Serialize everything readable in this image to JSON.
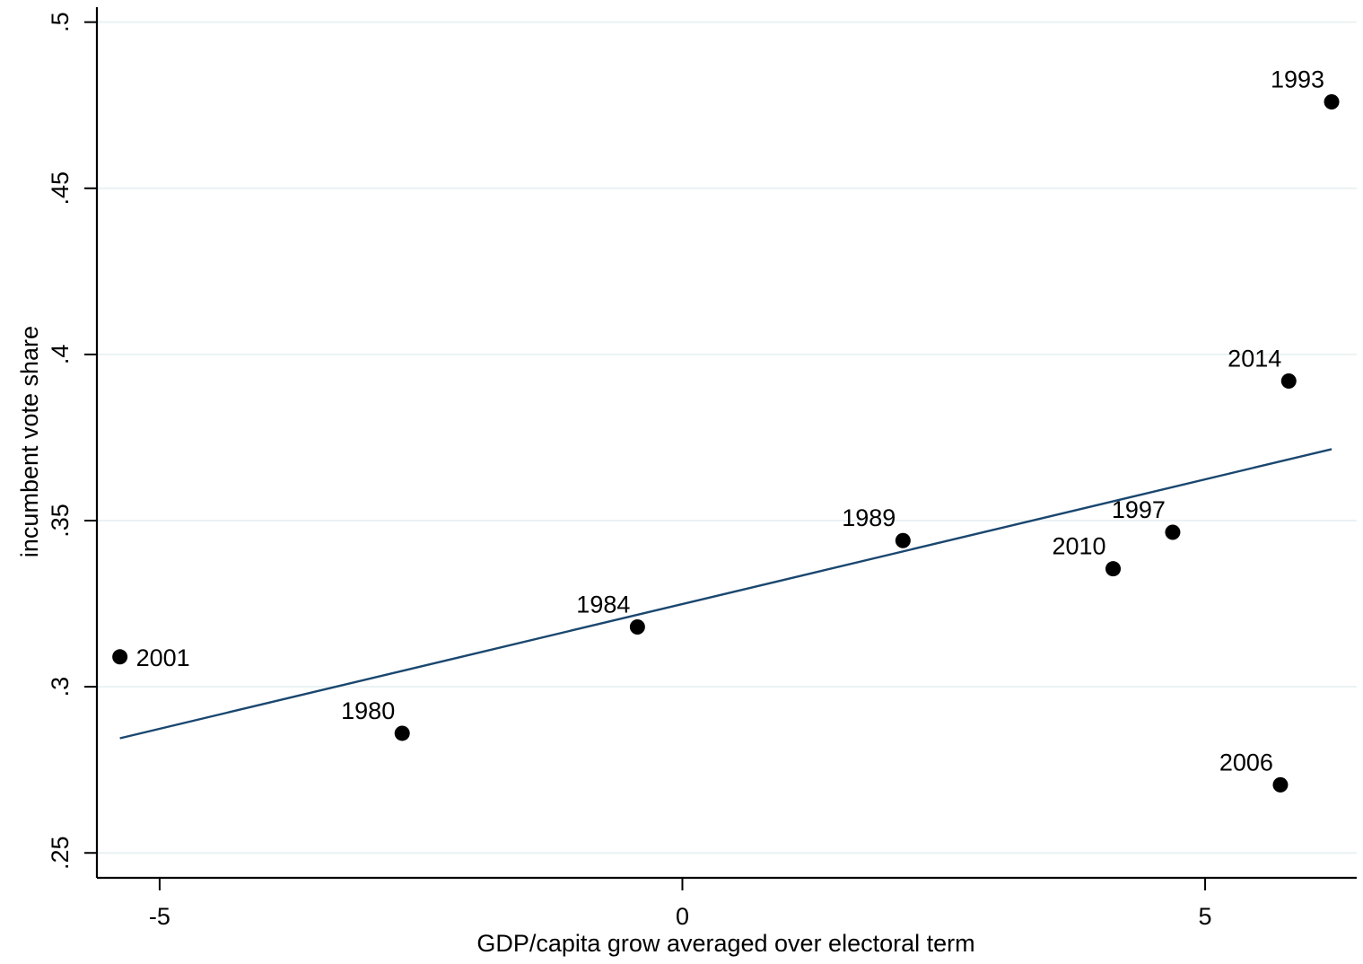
{
  "chart_data": {
    "type": "scatter",
    "title": "",
    "xlabel": "GDP/capita grow averaged over electoral term",
    "ylabel": "incumbent vote share",
    "xlim": [
      -5.6,
      6.45
    ],
    "ylim": [
      0.2425,
      0.5045
    ],
    "x_ticks": [
      {
        "value": -5,
        "label": "-5"
      },
      {
        "value": 0,
        "label": "0"
      },
      {
        "value": 5,
        "label": "5"
      }
    ],
    "y_ticks": [
      {
        "value": 0.25,
        "label": ".25"
      },
      {
        "value": 0.3,
        "label": ".3"
      },
      {
        "value": 0.35,
        "label": ".35"
      },
      {
        "value": 0.4,
        "label": ".4"
      },
      {
        "value": 0.45,
        "label": ".45"
      },
      {
        "value": 0.5,
        "label": ".5"
      }
    ],
    "grid": "horizontal",
    "points": [
      {
        "label": "2001",
        "x": -5.38,
        "y": 0.309,
        "label_pos": "right"
      },
      {
        "label": "1980",
        "x": -2.68,
        "y": 0.286,
        "label_pos": "above-left"
      },
      {
        "label": "1984",
        "x": -0.43,
        "y": 0.318,
        "label_pos": "above-left"
      },
      {
        "label": "1989",
        "x": 2.11,
        "y": 0.344,
        "label_pos": "above-left"
      },
      {
        "label": "2010",
        "x": 4.12,
        "y": 0.3355,
        "label_pos": "above-left"
      },
      {
        "label": "1997",
        "x": 4.69,
        "y": 0.3465,
        "label_pos": "above-left"
      },
      {
        "label": "2006",
        "x": 5.72,
        "y": 0.2705,
        "label_pos": "above-left"
      },
      {
        "label": "2014",
        "x": 5.8,
        "y": 0.392,
        "label_pos": "above-left"
      },
      {
        "label": "1993",
        "x": 6.21,
        "y": 0.476,
        "label_pos": "above-left"
      }
    ],
    "fit_line": {
      "x": [
        -5.38,
        6.21
      ],
      "y": [
        0.2845,
        0.3715
      ]
    },
    "colors": {
      "points": "#000000",
      "fit_line": "#1a476f",
      "grid": "#eaf2f3",
      "axes": "#000000"
    }
  }
}
